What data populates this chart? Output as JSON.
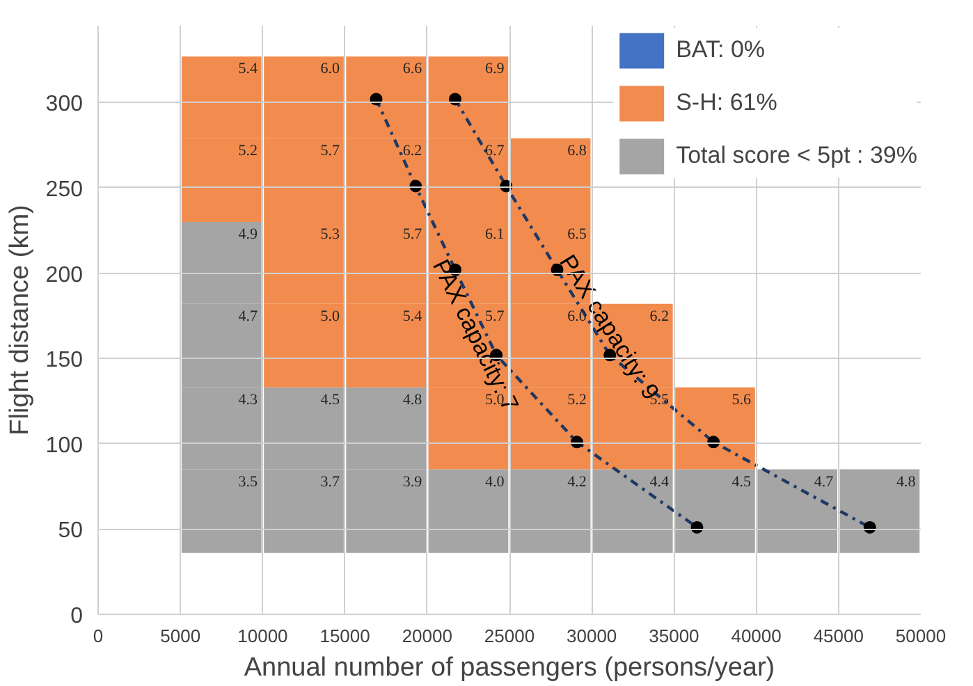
{
  "chart_data": {
    "type": "bar",
    "xlabel": "Annual number of passengers (persons/year)",
    "ylabel": "Flight distance (km)",
    "x": [
      7500,
      12500,
      17500,
      22500,
      27500,
      32500,
      37500,
      42500,
      47500
    ],
    "series": [
      {
        "base": [
          36,
          36,
          36,
          36,
          36,
          36,
          36,
          36,
          36
        ],
        "values": [
          49,
          49,
          49,
          49,
          49,
          49,
          49,
          49,
          49
        ],
        "colors": [
          "#a5a5a5",
          "#a5a5a5",
          "#a5a5a5",
          "#a5a5a5",
          "#a5a5a5",
          "#a5a5a5",
          "#a5a5a5",
          "#a5a5a5",
          "#a5a5a5"
        ]
      },
      {
        "base": [
          85,
          85,
          85,
          85,
          85,
          85,
          85,
          null,
          null
        ],
        "values": [
          48,
          48,
          48,
          48,
          48,
          48,
          48,
          null,
          null
        ],
        "colors": [
          "#a5a5a5",
          "#a5a5a5",
          "#a5a5a5",
          "#f28c4e",
          "#f28c4e",
          "#f28c4e",
          "#f28c4e",
          "#f28c4e",
          "#f28c4e"
        ]
      },
      {
        "base": [
          133,
          133,
          133,
          133,
          133,
          133,
          null,
          null,
          null
        ],
        "values": [
          49,
          49,
          49,
          49,
          49,
          49,
          null,
          null,
          null
        ],
        "colors": [
          "#a5a5a5",
          "#f28c4e",
          "#f28c4e",
          "#f28c4e",
          "#f28c4e",
          "#f28c4e",
          "#f28c4e",
          "#f28c4e",
          "#f28c4e"
        ]
      },
      {
        "base": [
          182,
          182,
          182,
          182,
          182,
          null,
          null,
          null,
          null
        ],
        "values": [
          48,
          48,
          48,
          48,
          48,
          null,
          null,
          null,
          null
        ],
        "colors": [
          "#a5a5a5",
          "#f28c4e",
          "#f28c4e",
          "#f28c4e",
          "#f28c4e",
          "#f28c4e",
          "#f28c4e",
          "#f28c4e",
          "#f28c4e"
        ]
      },
      {
        "base": [
          230,
          230,
          230,
          230,
          230,
          null,
          null,
          null,
          null
        ],
        "values": [
          49,
          49,
          49,
          49,
          49,
          null,
          null,
          null,
          null
        ],
        "colors": [
          "#f28c4e",
          "#f28c4e",
          "#f28c4e",
          "#f28c4e",
          "#f28c4e",
          "#f28c4e",
          "#f28c4e",
          "#f28c4e",
          "#f28c4e"
        ]
      },
      {
        "base": [
          279,
          279,
          279,
          279,
          null,
          null,
          null,
          null,
          null
        ],
        "values": [
          48,
          48,
          48,
          48,
          null,
          null,
          null,
          null,
          null
        ],
        "colors": [
          "#f28c4e",
          "#f28c4e",
          "#f28c4e",
          "#f28c4e",
          "#f28c4e",
          "#f28c4e",
          "#f28c4e",
          "#f28c4e",
          "#f28c4e"
        ]
      },
      {
        "name": "BAT: 0%",
        "color": "#4472c4",
        "values": [
          null,
          null,
          null,
          null,
          null,
          null,
          null,
          null,
          null
        ]
      },
      {
        "name": "S-H: 61%",
        "color": "#f28c4e",
        "values": [
          null,
          null,
          null,
          null,
          null,
          null,
          null,
          null,
          null
        ]
      },
      {
        "name": "Total score < 5pt : 39%",
        "color": "#a5a5a5",
        "values": [
          null,
          null,
          null,
          null,
          null,
          null,
          null,
          null,
          null
        ]
      },
      {
        "name": "PAX capacity: 7",
        "type": "line",
        "color": "#1f3864",
        "x": [
          16900,
          19300,
          21700,
          24200,
          29100,
          36400
        ],
        "values": [
          302,
          251,
          202,
          152,
          101,
          51
        ]
      },
      {
        "name": "PAX capacity: 9",
        "type": "line",
        "color": "#1f3864",
        "x": [
          21700,
          24800,
          27900,
          31100,
          37400,
          46900
        ],
        "values": [
          302,
          251,
          202,
          152,
          101,
          51
        ]
      }
    ],
    "annotations": [
      {
        "text": "3.5",
        "x": 7500,
        "y": 85
      },
      {
        "text": "4.3",
        "x": 7500,
        "y": 133
      },
      {
        "text": "4.7",
        "x": 7500,
        "y": 182
      },
      {
        "text": "4.9",
        "x": 7500,
        "y": 230
      },
      {
        "text": "5.2",
        "x": 7500,
        "y": 279
      },
      {
        "text": "5.4",
        "x": 7500,
        "y": 327
      },
      {
        "text": "3.7",
        "x": 12500,
        "y": 85
      },
      {
        "text": "4.5",
        "x": 12500,
        "y": 133
      },
      {
        "text": "5.0",
        "x": 12500,
        "y": 182
      },
      {
        "text": "5.3",
        "x": 12500,
        "y": 230
      },
      {
        "text": "5.7",
        "x": 12500,
        "y": 279
      },
      {
        "text": "6.0",
        "x": 12500,
        "y": 327
      },
      {
        "text": "3.9",
        "x": 17500,
        "y": 85
      },
      {
        "text": "4.8",
        "x": 17500,
        "y": 133
      },
      {
        "text": "5.4",
        "x": 17500,
        "y": 182
      },
      {
        "text": "5.7",
        "x": 17500,
        "y": 230
      },
      {
        "text": "6.2",
        "x": 17500,
        "y": 279
      },
      {
        "text": "6.6",
        "x": 17500,
        "y": 327
      },
      {
        "text": "4.0",
        "x": 22500,
        "y": 85
      },
      {
        "text": "5.0",
        "x": 22500,
        "y": 133
      },
      {
        "text": "5.7",
        "x": 22500,
        "y": 182
      },
      {
        "text": "6.1",
        "x": 22500,
        "y": 230
      },
      {
        "text": "6.7",
        "x": 22500,
        "y": 279
      },
      {
        "text": "6.9",
        "x": 22500,
        "y": 327
      },
      {
        "text": "4.2",
        "x": 27500,
        "y": 85
      },
      {
        "text": "5.2",
        "x": 27500,
        "y": 133
      },
      {
        "text": "6.0",
        "x": 27500,
        "y": 182
      },
      {
        "text": "6.5",
        "x": 27500,
        "y": 230
      },
      {
        "text": "6.8",
        "x": 27500,
        "y": 279
      },
      {
        "text": "4.4",
        "x": 32500,
        "y": 85
      },
      {
        "text": "5.5",
        "x": 32500,
        "y": 133
      },
      {
        "text": "6.2",
        "x": 32500,
        "y": 182
      },
      {
        "text": "4.5",
        "x": 37500,
        "y": 85
      },
      {
        "text": "5.6",
        "x": 37500,
        "y": 133
      },
      {
        "text": "4.7",
        "x": 42500,
        "y": 85
      },
      {
        "text": "4.8",
        "x": 47500,
        "y": 85
      }
    ],
    "xlim": [
      0,
      50000
    ],
    "xticks": [
      0,
      5000,
      10000,
      15000,
      20000,
      25000,
      30000,
      35000,
      40000,
      45000,
      50000
    ],
    "ylim": [
      0,
      345
    ],
    "yticks": [
      0,
      50,
      100,
      150,
      200,
      250,
      300
    ],
    "grid": true,
    "legend": "top right",
    "marker": "circle",
    "line_style": "dashed"
  }
}
